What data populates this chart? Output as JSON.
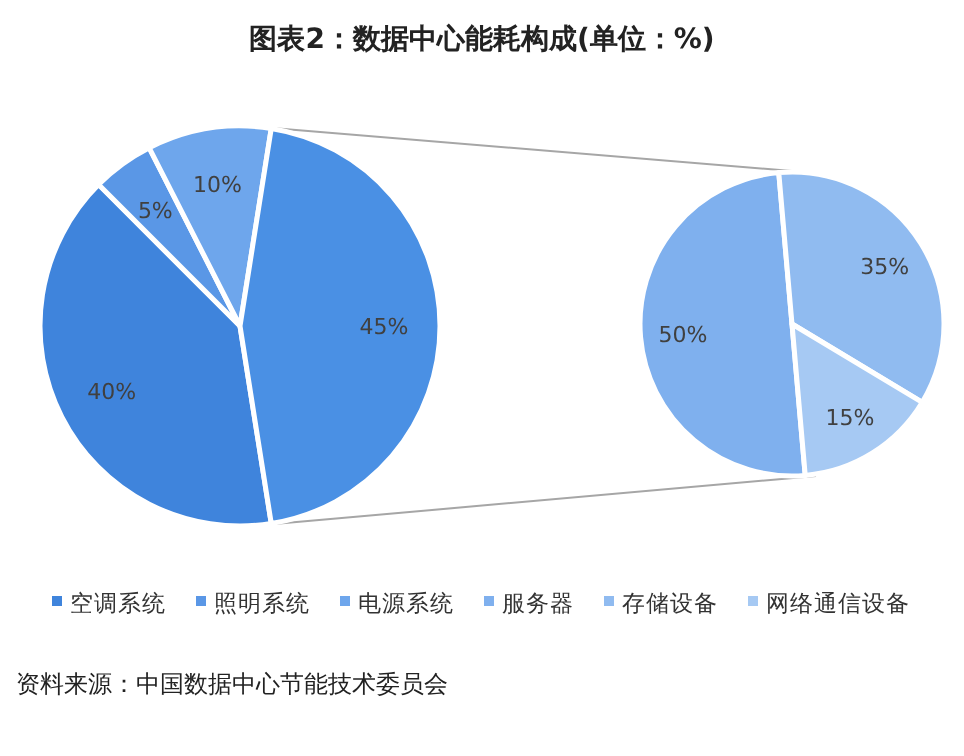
{
  "chart_data": [
    {
      "type": "pie",
      "title": "图表2：数据中心能耗构成(单位：%)",
      "categories": [
        "空调系统",
        "照明系统",
        "电源系统",
        null
      ],
      "values": [
        40,
        5,
        10,
        45
      ],
      "value_labels": [
        "40%",
        "5%",
        "10%",
        "45%"
      ],
      "colors": [
        "#3f84dc",
        "#5a97e6",
        "#6ea6ec",
        "#4a90e4"
      ],
      "legend": "bottom",
      "annotations": [
        "资料来源：中国数据中心节能技术委员会"
      ]
    },
    {
      "type": "pie",
      "categories": [
        "服务器",
        "存储设备",
        "网络通信设备"
      ],
      "values": [
        50,
        35,
        15
      ],
      "value_labels": [
        "50%",
        "35%",
        "15%"
      ],
      "colors": [
        "#7fb0ee",
        "#90bbf0",
        "#a6c9f3"
      ],
      "legend": "bottom"
    }
  ]
}
